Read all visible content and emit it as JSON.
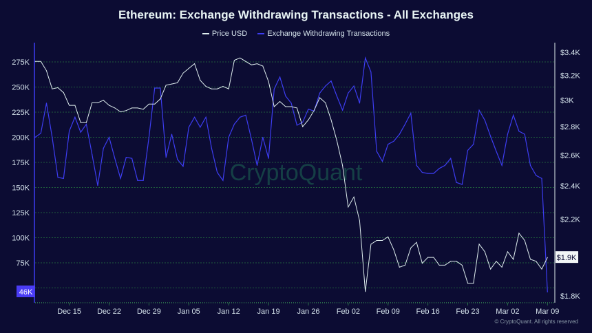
{
  "chart_data": {
    "type": "line",
    "title": "Ethereum: Exchange Withdrawing Transactions - All Exchanges",
    "legend": [
      "Price USD",
      "Exchange Withdrawing Transactions"
    ],
    "legend_placement": "top-center",
    "grid": true,
    "colors": {
      "price": "#dfeeee",
      "withdrawals": "#3d3df2",
      "background": "#0c0c33",
      "grid": "#1f5d3c"
    },
    "x_start": "Dec 09",
    "x_tick_labels": [
      "Dec 15",
      "Dec 22",
      "Dec 29",
      "Jan 05",
      "Jan 12",
      "Jan 19",
      "Jan 26",
      "Feb 02",
      "Feb 09",
      "Feb 16",
      "Feb 23",
      "Mar 02",
      "Mar 09"
    ],
    "left_axis": {
      "ticks": [
        "275K",
        "250K",
        "225K",
        "200K",
        "175K",
        "150K",
        "125K",
        "100K",
        "75K"
      ],
      "ylim": [
        50,
        290
      ],
      "unit": "K"
    },
    "right_axis": {
      "ticks": [
        "$3.4K",
        "$3.2K",
        "$3K",
        "$2.8K",
        "$2.6K",
        "$2.4K",
        "$2.2K",
        "$1.8K"
      ],
      "ylim": [
        1.8,
        3.4
      ],
      "scale": "log",
      "unit": "K USD"
    },
    "series": [
      {
        "name": "Price USD",
        "axis": "right",
        "values": [
          3.32,
          3.32,
          3.24,
          3.09,
          3.1,
          3.06,
          2.96,
          2.96,
          2.83,
          2.83,
          2.98,
          2.98,
          3.0,
          2.96,
          2.94,
          2.91,
          2.92,
          2.94,
          2.94,
          2.93,
          2.97,
          2.97,
          3.01,
          3.12,
          3.13,
          3.14,
          3.22,
          3.26,
          3.3,
          3.16,
          3.11,
          3.09,
          3.09,
          3.11,
          3.09,
          3.33,
          3.35,
          3.32,
          3.29,
          3.3,
          3.28,
          3.15,
          2.95,
          2.99,
          2.95,
          2.95,
          2.94,
          2.8,
          2.85,
          2.92,
          3.02,
          2.98,
          2.85,
          2.7,
          2.53,
          2.27,
          2.33,
          2.19,
          1.82,
          2.06,
          2.08,
          2.08,
          2.1,
          2.03,
          1.94,
          1.95,
          2.04,
          2.07,
          1.96,
          1.99,
          1.99,
          1.95,
          1.95,
          1.97,
          1.97,
          1.95,
          1.86,
          1.86,
          2.06,
          2.02,
          1.93,
          1.97,
          1.94,
          2.02,
          1.98,
          2.12,
          2.08,
          1.98,
          1.97,
          1.93,
          1.99
        ]
      },
      {
        "name": "Exchange Withdrawing Transactions",
        "axis": "left",
        "values": [
          200,
          204,
          234,
          200,
          160,
          159,
          206,
          220,
          205,
          213,
          183,
          152,
          189,
          200,
          179,
          159,
          180,
          179,
          157,
          157,
          200,
          249,
          249,
          180,
          203,
          178,
          171,
          210,
          220,
          210,
          220,
          189,
          165,
          157,
          200,
          213,
          220,
          222,
          198,
          172,
          200,
          179,
          248,
          260,
          241,
          234,
          212,
          215,
          228,
          226,
          244,
          251,
          256,
          241,
          227,
          244,
          251,
          234,
          279,
          265,
          186,
          176,
          193,
          196,
          203,
          213,
          224,
          172,
          165,
          164,
          164,
          169,
          172,
          179,
          155,
          153,
          187,
          193,
          227,
          217,
          201,
          186,
          172,
          203,
          222,
          206,
          203,
          172,
          162,
          159,
          46
        ]
      }
    ],
    "last_value_labels": {
      "left": "46K",
      "right": "$1.9K"
    },
    "watermark": "CryptoQuant",
    "copyright": "© CryptoQuant. All rights reserved"
  }
}
